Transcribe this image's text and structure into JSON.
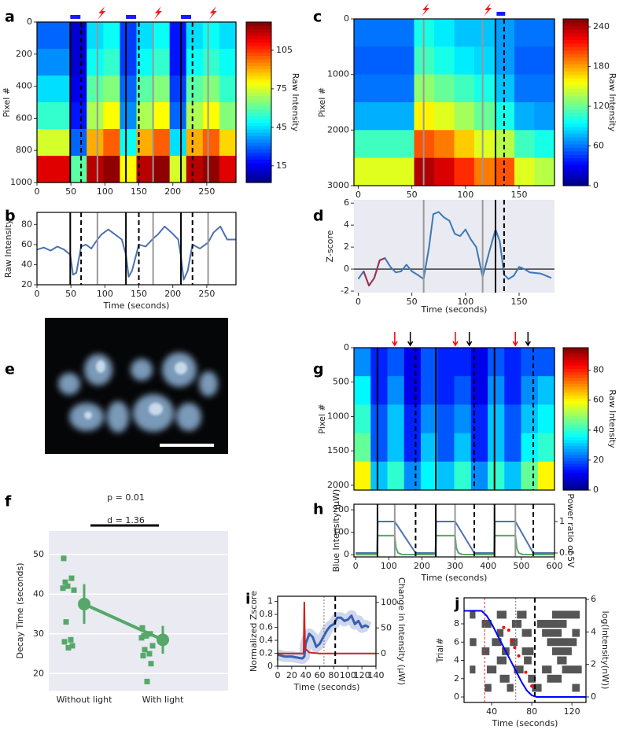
{
  "chart_data": [
    {
      "type": "heatmap",
      "label": "a",
      "ylabel": "Pixel #",
      "clabel": "Raw Intensity",
      "xlim": [
        0,
        293
      ],
      "ylim": [
        1000,
        0
      ],
      "xticks": [
        0,
        50,
        100,
        150,
        200,
        250
      ],
      "yticks": [
        0,
        200,
        400,
        600,
        800,
        1000
      ],
      "clim": [
        2,
        127
      ],
      "cticks": [
        15,
        45,
        75,
        105
      ],
      "z": [
        [
          30,
          30,
          12,
          45,
          50,
          25,
          45,
          50,
          20,
          45,
          50,
          45
        ],
        [
          35,
          35,
          12,
          50,
          55,
          25,
          50,
          55,
          20,
          50,
          55,
          50
        ],
        [
          45,
          45,
          15,
          60,
          65,
          30,
          60,
          65,
          25,
          60,
          65,
          55
        ],
        [
          55,
          55,
          20,
          70,
          80,
          35,
          70,
          80,
          30,
          70,
          80,
          65
        ],
        [
          75,
          75,
          30,
          90,
          100,
          50,
          90,
          100,
          45,
          90,
          100,
          85
        ],
        [
          115,
          115,
          60,
          120,
          125,
          80,
          120,
          125,
          75,
          120,
          125,
          115
        ]
      ],
      "vlines": {
        "solid": [
          49,
          131,
          212
        ],
        "dashed": [
          65,
          150,
          229
        ],
        "gray": [
          89,
          171,
          252
        ]
      },
      "light_bars": [
        [
          49,
          64
        ],
        [
          131,
          146
        ],
        [
          212,
          227
        ]
      ],
      "stim": [
        94,
        177,
        258
      ]
    },
    {
      "type": "line",
      "label": "b",
      "ylabel": "Raw Intensity",
      "xlabel": "Time (seconds)",
      "xlim": [
        0,
        293
      ],
      "ylim": [
        20,
        92
      ],
      "xticks": [
        0,
        50,
        100,
        150,
        200,
        250
      ],
      "yticks": [
        20,
        40,
        60,
        80
      ],
      "vlines": {
        "solid": [
          49,
          131,
          212
        ],
        "dashed": [
          65,
          150,
          229
        ],
        "gray": [
          89,
          171,
          252
        ]
      },
      "series": [
        {
          "color": "#4c72b0",
          "x": [
            0,
            10,
            20,
            30,
            40,
            49,
            53,
            58,
            65,
            72,
            80,
            89,
            95,
            105,
            115,
            125,
            131,
            135,
            140,
            150,
            160,
            171,
            178,
            188,
            198,
            208,
            212,
            216,
            222,
            229,
            240,
            252,
            260,
            270,
            280,
            293
          ],
          "values": [
            55,
            57,
            54,
            58,
            55,
            50,
            30,
            32,
            58,
            60,
            56,
            65,
            70,
            75,
            70,
            65,
            50,
            28,
            34,
            60,
            58,
            66,
            70,
            78,
            72,
            65,
            48,
            25,
            34,
            60,
            56,
            62,
            72,
            78,
            65,
            65
          ]
        }
      ]
    },
    {
      "type": "heatmap",
      "label": "c",
      "ylabel": "Pixel #",
      "clabel": "Raw Intensity",
      "xlim": [
        -4,
        183
      ],
      "ylim": [
        3000,
        0
      ],
      "xticks": [
        0,
        50,
        100,
        150
      ],
      "yticks": [
        0,
        1000,
        2000,
        3000
      ],
      "clim": [
        0,
        252
      ],
      "cticks": [
        0,
        60,
        120,
        180,
        240
      ],
      "z": [
        [
          60,
          60,
          60,
          100,
          90,
          80,
          80,
          70,
          60,
          60
        ],
        [
          55,
          55,
          55,
          110,
          100,
          90,
          85,
          70,
          55,
          55
        ],
        [
          60,
          60,
          60,
          130,
          120,
          110,
          100,
          80,
          60,
          60
        ],
        [
          75,
          75,
          75,
          160,
          150,
          135,
          120,
          100,
          75,
          70
        ],
        [
          110,
          110,
          110,
          200,
          190,
          170,
          150,
          140,
          110,
          100
        ],
        [
          150,
          150,
          150,
          240,
          230,
          210,
          190,
          200,
          150,
          140
        ]
      ],
      "vlines": {
        "gray": [
          61,
          116
        ],
        "solid": [
          128
        ],
        "dashed": [
          136
        ]
      },
      "light_bars": [
        [
          129,
          137
        ]
      ],
      "stim": [
        62,
        120
      ]
    },
    {
      "type": "line",
      "label": "d",
      "ylabel": "Z-score",
      "xlabel": "Time (seconds)",
      "background": "#eaeaf2",
      "xlim": [
        -4,
        183
      ],
      "ylim": [
        -2.14,
        6.3
      ],
      "xticks": [
        0,
        50,
        100,
        150
      ],
      "yticks": [
        -2,
        0,
        2,
        4,
        6
      ],
      "hline": 0,
      "vlines": {
        "gray": [
          61,
          116
        ],
        "solid": [
          128
        ],
        "dashed": [
          136
        ]
      },
      "series": [
        {
          "color": "#3a78b5",
          "x": [
            0,
            5,
            10,
            15,
            20,
            25,
            30,
            35,
            40,
            45,
            50,
            55,
            61,
            66,
            70,
            75,
            80,
            85,
            90,
            95,
            100,
            105,
            110,
            116,
            122,
            128,
            132,
            136,
            140,
            145,
            150,
            155,
            160,
            170,
            180
          ],
          "values": [
            -0.9,
            -0.2,
            -1.5,
            -0.8,
            0.8,
            1.0,
            0.2,
            -0.3,
            -0.2,
            0.4,
            -0.2,
            -0.5,
            -0.9,
            2.0,
            5.0,
            5.2,
            4.7,
            4.4,
            3.2,
            3.0,
            3.6,
            2.7,
            2.0,
            -0.7,
            1.5,
            3.6,
            2.5,
            -0.5,
            -0.9,
            -0.6,
            0.2,
            0.0,
            -0.3,
            -0.4,
            -0.8
          ]
        },
        {
          "color": "#a0304a",
          "x": [
            5,
            10,
            15,
            20,
            25
          ],
          "values": [
            -0.2,
            -1.5,
            -0.8,
            0.8,
            1.0
          ]
        }
      ]
    },
    {
      "type": "image",
      "label": "e"
    },
    {
      "type": "dot_plot",
      "label": "f",
      "ylabel": "Decay Time (seconds)",
      "categories": [
        "Without light",
        "With light"
      ],
      "annotations": [
        "p = 0.01",
        "d = 1.36"
      ],
      "color": "#55a868",
      "background": "#eaeaf2",
      "grid": true,
      "ylim": [
        15.7,
        55.9
      ],
      "yticks": [
        20,
        30,
        40,
        50
      ],
      "groups": [
        {
          "values": [
            49,
            44,
            43,
            42,
            41.5,
            41,
            33,
            28.5,
            28,
            27,
            26.5
          ],
          "mean": 37.5,
          "ci": [
            32.5,
            42.5
          ]
        },
        {
          "values": [
            31.5,
            30,
            29.5,
            29.5,
            29,
            27,
            26,
            25,
            24.5,
            22.5,
            18
          ],
          "mean": 28.5,
          "ci": [
            25,
            32
          ]
        }
      ]
    },
    {
      "type": "heatmap",
      "label": "g",
      "ylabel": "Pixel #",
      "clabel": "Raw Intensity",
      "xlim": [
        -5,
        600
      ],
      "ylim": [
        2070,
        0
      ],
      "yticks": [
        0,
        500,
        1000,
        1500,
        2000
      ],
      "clim": [
        0,
        95
      ],
      "cticks": [
        0,
        20,
        40,
        60,
        80
      ],
      "z": [
        [
          25,
          15,
          20,
          10,
          20,
          15,
          15,
          10,
          20,
          15,
          20,
          20
        ],
        [
          35,
          15,
          25,
          10,
          20,
          15,
          20,
          10,
          25,
          15,
          25,
          30
        ],
        [
          40,
          20,
          30,
          15,
          25,
          20,
          25,
          15,
          30,
          20,
          30,
          35
        ],
        [
          45,
          20,
          30,
          15,
          30,
          20,
          30,
          15,
          30,
          20,
          35,
          40
        ],
        [
          60,
          30,
          40,
          25,
          35,
          30,
          40,
          25,
          40,
          30,
          45,
          60
        ]
      ],
      "vlines": {
        "solid": [
          66,
          242,
          419
        ],
        "dashed": [
          181,
          358,
          536
        ]
      },
      "arrows": {
        "red": [
          118,
          301,
          482
        ],
        "black": [
          165,
          343,
          520
        ]
      }
    },
    {
      "type": "line",
      "label": "h",
      "ylabel": "Blue Intensity (μW)",
      "ylabel_color": "#55a868",
      "y2label": "Power ratio of 5V",
      "y2label_color": "#4c72b0",
      "xlabel": "Time (seconds)",
      "xlim": [
        -5,
        600
      ],
      "ylim": [
        -10,
        225
      ],
      "xticks": [
        0,
        100,
        200,
        300,
        400,
        500,
        600
      ],
      "yticks": [
        0,
        100,
        200
      ],
      "y2lim": [
        0.55,
        1.22
      ],
      "y2ticks": [
        0.6,
        1
      ],
      "vlines": {
        "solid": [
          66,
          242,
          419
        ],
        "gray": [
          118,
          300,
          482
        ],
        "dashed": [
          181,
          358,
          536
        ]
      },
      "series": [
        {
          "color": "#4c72b0",
          "axis": "y2",
          "x": [
            0,
            65,
            67,
            118,
            181,
            241,
            243,
            300,
            358,
            418,
            420,
            482,
            536,
            600
          ],
          "values": [
            0.6,
            0.6,
            1,
            1,
            0.6,
            0.6,
            1,
            1,
            0.6,
            0.6,
            1,
            1,
            0.6,
            0.6
          ]
        },
        {
          "color": "#55a868",
          "x": [
            0,
            65,
            67,
            118,
            122,
            128,
            140,
            241,
            243,
            300,
            304,
            310,
            322,
            418,
            420,
            482,
            486,
            492,
            504,
            600
          ],
          "values": [
            0,
            0,
            85,
            85,
            30,
            8,
            1,
            0,
            85,
            85,
            30,
            8,
            1,
            0,
            85,
            85,
            30,
            8,
            1,
            0
          ]
        }
      ]
    },
    {
      "type": "line",
      "label": "i",
      "ylabel": "Normalized Zscore",
      "ylabel_color": "#2222cc",
      "ytick_color": "#2222cc",
      "y2label": "Change in Intensity (μW)",
      "y2label_color": "#cc2222",
      "y2tick_color": "#cc2222",
      "xlabel": "Time (seconds)",
      "xlim": [
        0,
        140
      ],
      "ylim": [
        0,
        1.08
      ],
      "xticks": [
        0,
        20,
        40,
        60,
        80,
        100,
        120,
        140
      ],
      "yticks": [
        0,
        0.2,
        0.4,
        0.6,
        0.8,
        1
      ],
      "y2lim": [
        -25,
        112
      ],
      "y2ticks": [
        0,
        50,
        100
      ],
      "vlines": {
        "dotted": [
          66
        ],
        "dashed": [
          82
        ]
      },
      "series": [
        {
          "color": "#3a5fb0",
          "width": 3,
          "x": [
            0,
            10,
            20,
            30,
            35,
            38,
            40,
            45,
            50,
            55,
            60,
            65,
            70,
            75,
            80,
            85,
            90,
            95,
            100,
            105,
            110,
            115,
            120,
            125,
            130
          ],
          "values": [
            0.18,
            0.15,
            0.15,
            0.13,
            0.12,
            0.15,
            0.35,
            0.5,
            0.45,
            0.3,
            0.35,
            0.45,
            0.55,
            0.62,
            0.65,
            0.75,
            0.75,
            0.7,
            0.72,
            0.78,
            0.65,
            0.7,
            0.6,
            0.63,
            0.6
          ]
        },
        {
          "color": "#cc2222",
          "axis": "y2",
          "x": [
            0,
            37,
            38,
            39,
            45,
            60,
            140
          ],
          "values": [
            0,
            0,
            100,
            10,
            2,
            0,
            0
          ]
        }
      ]
    },
    {
      "type": "raster",
      "label": "j",
      "ylabel": "Trial#",
      "y2label": "log(Intensity(nW))",
      "y2label_color": "#0000ff",
      "y2tick_color": "#0000ff",
      "xlabel": "Time (seconds)",
      "xlim": [
        12.5,
        134
      ],
      "ylim": [
        -0.6,
        10.84
      ],
      "xticks": [
        40,
        80,
        120
      ],
      "yticks": [
        0,
        2,
        4,
        6,
        8
      ],
      "y2lim": [
        -0.34,
        6.1
      ],
      "y2ticks": [
        0,
        2,
        4,
        6
      ],
      "events": [
        [
          9,
          45,
          55
        ],
        [
          9,
          65,
          75
        ],
        [
          9,
          100,
          128
        ],
        [
          9,
          18,
          24
        ],
        [
          8,
          30,
          40
        ],
        [
          8,
          60,
          70
        ],
        [
          8,
          85,
          115
        ],
        [
          7,
          45,
          52
        ],
        [
          7,
          70,
          80
        ],
        [
          7,
          90,
          110
        ],
        [
          7,
          120,
          128
        ],
        [
          6,
          40,
          50
        ],
        [
          6,
          58,
          66
        ],
        [
          6,
          95,
          125
        ],
        [
          6,
          18,
          25
        ],
        [
          5,
          30,
          38
        ],
        [
          5,
          50,
          58
        ],
        [
          5,
          70,
          82
        ],
        [
          5,
          100,
          120
        ],
        [
          4,
          45,
          55
        ],
        [
          4,
          72,
          80
        ],
        [
          4,
          105,
          115
        ],
        [
          3,
          35,
          45
        ],
        [
          3,
          62,
          72
        ],
        [
          3,
          90,
          100
        ],
        [
          3,
          110,
          130
        ],
        [
          3,
          18,
          24
        ],
        [
          2,
          48,
          58
        ],
        [
          2,
          76,
          84
        ],
        [
          2,
          95,
          110
        ],
        [
          1,
          33,
          40
        ],
        [
          1,
          55,
          62
        ],
        [
          1,
          80,
          90
        ],
        [
          1,
          120,
          128
        ]
      ],
      "vlines": {
        "red_dashed": [
          33
        ],
        "dotted": [
          64
        ],
        "dashed": [
          83
        ]
      },
      "points": {
        "color": "#ff0000",
        "x": [
          52,
          57,
          60,
          63,
          67,
          74,
          80
        ],
        "y": [
          7.6,
          7.3,
          6.2,
          5.4,
          4.5,
          2.7,
          1.2
        ]
      },
      "series": [
        {
          "color": "#0000ff",
          "axis": "y2",
          "x": [
            12.5,
            30,
            35,
            40,
            45,
            50,
            55,
            60,
            65,
            70,
            75,
            80,
            85,
            134
          ],
          "values": [
            5.3,
            5.3,
            5.0,
            4.5,
            3.9,
            3.3,
            2.7,
            2.1,
            1.5,
            0.9,
            0.4,
            0.1,
            0,
            0
          ]
        }
      ]
    }
  ]
}
